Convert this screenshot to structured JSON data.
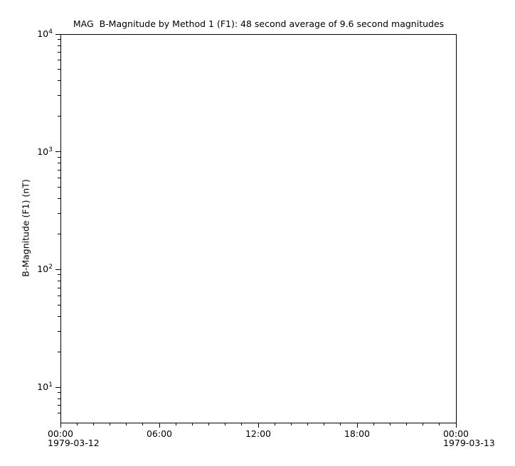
{
  "chart_data": {
    "type": "line",
    "title": "MAG  B-Magnitude by Method 1 (F1): 48 second average of 9.6 second magnitudes",
    "xlabel": "",
    "ylabel": "B-Magnitude (F1) (nT)",
    "background_color": "#ffffff",
    "axis_color": "#000000",
    "grid": false,
    "legend": false,
    "x_axis": {
      "start_datetime": "1979-03-12 00:00",
      "end_datetime": "1979-03-13 00:00",
      "span_hours": 24,
      "minor_tick_every_hours": 1,
      "major_ticks": [
        {
          "hour": 0,
          "label": "00:00",
          "date_label": "1979-03-12"
        },
        {
          "hour": 6,
          "label": "06:00"
        },
        {
          "hour": 12,
          "label": "12:00"
        },
        {
          "hour": 18,
          "label": "18:00"
        },
        {
          "hour": 24,
          "label": "00:00",
          "date_label": "1979-03-13"
        }
      ]
    },
    "y_axis": {
      "scale": "log",
      "min": 5,
      "max": 10000,
      "major_ticks": [
        {
          "value": 10,
          "base": "10",
          "exponent": "1"
        },
        {
          "value": 100,
          "base": "10",
          "exponent": "2"
        },
        {
          "value": 1000,
          "base": "10",
          "exponent": "3"
        },
        {
          "value": 10000,
          "base": "10",
          "exponent": "4"
        }
      ],
      "minor_tick_mantissas": [
        2,
        3,
        4,
        5,
        6,
        7,
        8,
        9
      ]
    },
    "series": []
  }
}
